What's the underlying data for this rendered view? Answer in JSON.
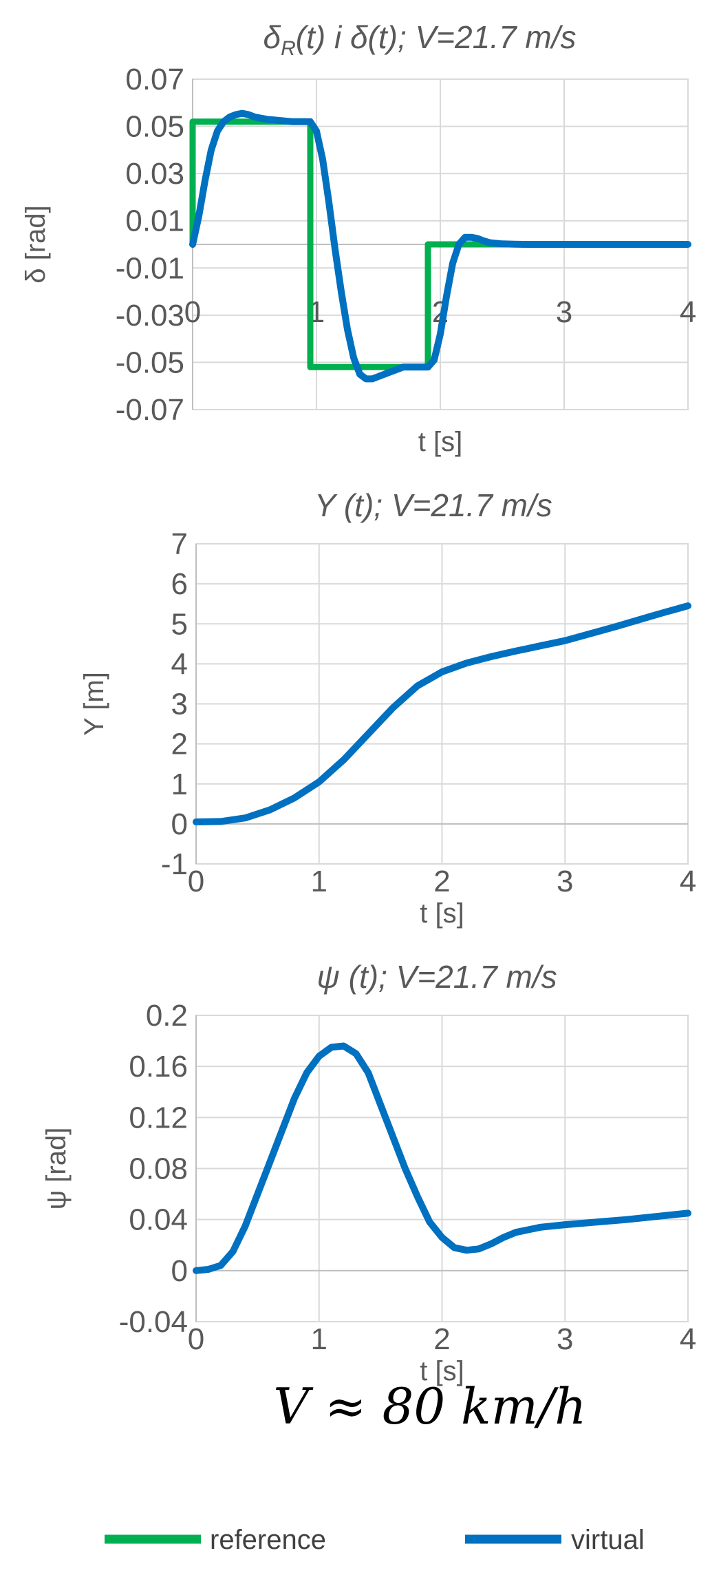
{
  "colors": {
    "reference": "#00b050",
    "virtual": "#0070c0",
    "text": "#595959",
    "grid": "#d9d9d9"
  },
  "chart_data": [
    {
      "type": "line",
      "title": "δR(t) i δ(t); V=21.7 m/s",
      "xlabel": "t [s]",
      "ylabel": "δ [rad]",
      "xlim": [
        0,
        4
      ],
      "ylim": [
        -0.07,
        0.07
      ],
      "xticks": [
        "0",
        "1",
        "2",
        "3",
        "4"
      ],
      "yticks": [
        "0.07",
        "0.05",
        "0.03",
        "0.01",
        "-0.01",
        "-0.03",
        "-0.05",
        "-0.07"
      ],
      "grid": true,
      "series": [
        {
          "name": "reference",
          "x": [
            0,
            0,
            0.95,
            0.95,
            1.9,
            1.9,
            4
          ],
          "y": [
            0,
            0.052,
            0.052,
            -0.052,
            -0.052,
            0,
            0
          ]
        },
        {
          "name": "virtual",
          "x": [
            0,
            0.05,
            0.1,
            0.15,
            0.2,
            0.25,
            0.3,
            0.35,
            0.4,
            0.45,
            0.5,
            0.6,
            0.7,
            0.8,
            0.9,
            0.95,
            1.0,
            1.05,
            1.1,
            1.15,
            1.2,
            1.25,
            1.3,
            1.35,
            1.4,
            1.45,
            1.5,
            1.6,
            1.7,
            1.8,
            1.9,
            1.95,
            2.0,
            2.05,
            2.1,
            2.15,
            2.2,
            2.25,
            2.3,
            2.35,
            2.4,
            2.5,
            2.6,
            2.7,
            2.8,
            3.0,
            3.5,
            4.0
          ],
          "y": [
            0,
            0.012,
            0.027,
            0.04,
            0.048,
            0.052,
            0.054,
            0.055,
            0.0555,
            0.055,
            0.054,
            0.053,
            0.0525,
            0.052,
            0.052,
            0.052,
            0.048,
            0.036,
            0.018,
            -0.002,
            -0.02,
            -0.036,
            -0.048,
            -0.055,
            -0.057,
            -0.057,
            -0.056,
            -0.054,
            -0.052,
            -0.052,
            -0.052,
            -0.049,
            -0.038,
            -0.022,
            -0.008,
            0.0,
            0.003,
            0.003,
            0.0025,
            0.0015,
            0.0007,
            0.0002,
            0.0001,
            0,
            0,
            0,
            0,
            0
          ]
        }
      ]
    },
    {
      "type": "line",
      "title": "Y (t); V=21.7 m/s",
      "xlabel": "t [s]",
      "ylabel": "Y [m]",
      "xlim": [
        0,
        4
      ],
      "ylim": [
        -1,
        7
      ],
      "xticks": [
        "0",
        "1",
        "2",
        "3",
        "4"
      ],
      "yticks": [
        "7",
        "6",
        "5",
        "4",
        "3",
        "2",
        "1",
        "0",
        "-1"
      ],
      "grid": true,
      "series": [
        {
          "name": "virtual",
          "x": [
            0,
            0.2,
            0.4,
            0.6,
            0.8,
            1.0,
            1.2,
            1.4,
            1.6,
            1.8,
            2.0,
            2.2,
            2.4,
            2.6,
            2.8,
            3.0,
            3.2,
            3.4,
            3.6,
            3.8,
            4.0
          ],
          "y": [
            0.05,
            0.06,
            0.15,
            0.35,
            0.65,
            1.05,
            1.6,
            2.25,
            2.9,
            3.45,
            3.8,
            4.02,
            4.18,
            4.32,
            4.45,
            4.58,
            4.75,
            4.92,
            5.1,
            5.28,
            5.45
          ]
        }
      ]
    },
    {
      "type": "line",
      "title": "ψ (t); V=21.7 m/s",
      "xlabel": "t [s]",
      "ylabel": "ψ [rad]",
      "xlim": [
        0,
        4
      ],
      "ylim": [
        -0.04,
        0.2
      ],
      "xticks": [
        "0",
        "1",
        "2",
        "3",
        "4"
      ],
      "yticks": [
        "0.2",
        "0.16",
        "0.12",
        "0.08",
        "0.04",
        "0",
        "-0.04"
      ],
      "grid": true,
      "series": [
        {
          "name": "virtual",
          "x": [
            0,
            0.1,
            0.2,
            0.3,
            0.4,
            0.5,
            0.6,
            0.7,
            0.8,
            0.9,
            1.0,
            1.1,
            1.2,
            1.3,
            1.4,
            1.5,
            1.6,
            1.7,
            1.8,
            1.9,
            2.0,
            2.1,
            2.2,
            2.3,
            2.4,
            2.5,
            2.6,
            2.8,
            3.0,
            3.5,
            4.0
          ],
          "y": [
            0,
            0.001,
            0.004,
            0.015,
            0.035,
            0.06,
            0.085,
            0.11,
            0.135,
            0.155,
            0.168,
            0.175,
            0.176,
            0.17,
            0.155,
            0.13,
            0.105,
            0.08,
            0.058,
            0.038,
            0.026,
            0.018,
            0.016,
            0.017,
            0.021,
            0.026,
            0.03,
            0.034,
            0.036,
            0.04,
            0.045
          ]
        }
      ]
    }
  ],
  "annotation": "V ≈ 80 km/h",
  "legend": [
    {
      "label": "reference",
      "color": "#00b050"
    },
    {
      "label": "virtual",
      "color": "#0070c0"
    }
  ]
}
